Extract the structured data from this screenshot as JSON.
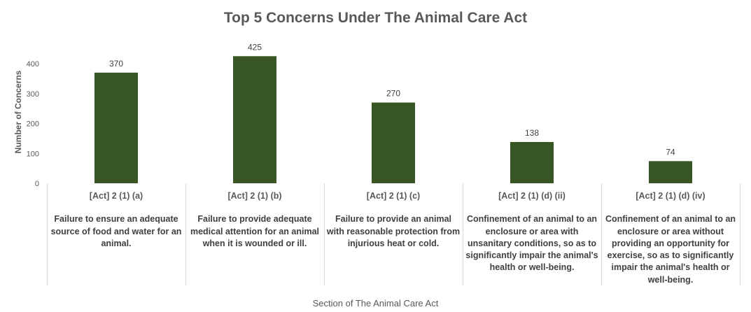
{
  "chart_data": {
    "type": "bar",
    "title": "Top 5 Concerns Under The Animal Care Act",
    "xlabel": "Section of The Animal Care Act",
    "ylabel": "Number of Concerns",
    "ylim": [
      0,
      450
    ],
    "yticks": [
      0,
      100,
      200,
      300,
      400
    ],
    "grid": false,
    "bar_color": "#375623",
    "categories": [
      {
        "code": "[Act] 2 (1) (a)",
        "description": "Failure to ensure an adequate source of food and water for an animal."
      },
      {
        "code": "[Act] 2 (1) (b)",
        "description": "Failure to provide adequate medical attention for an animal when it is wounded or ill."
      },
      {
        "code": "[Act] 2 (1) (c)",
        "description": "Failure to provide an animal with reasonable protection from injurious heat or cold."
      },
      {
        "code": "[Act] 2 (1) (d) (ii)",
        "description": "Confinement of an animal to an enclosure or area with unsanitary conditions, so as to significantly impair the animal's health or well-being."
      },
      {
        "code": "[Act] 2 (1) (d) (iv)",
        "description": "Confinement of an animal to an enclosure or area without providing an opportunity for exercise, so as to significantly impair the animal's health or well-being."
      }
    ],
    "values": [
      370,
      425,
      270,
      138,
      74
    ]
  }
}
